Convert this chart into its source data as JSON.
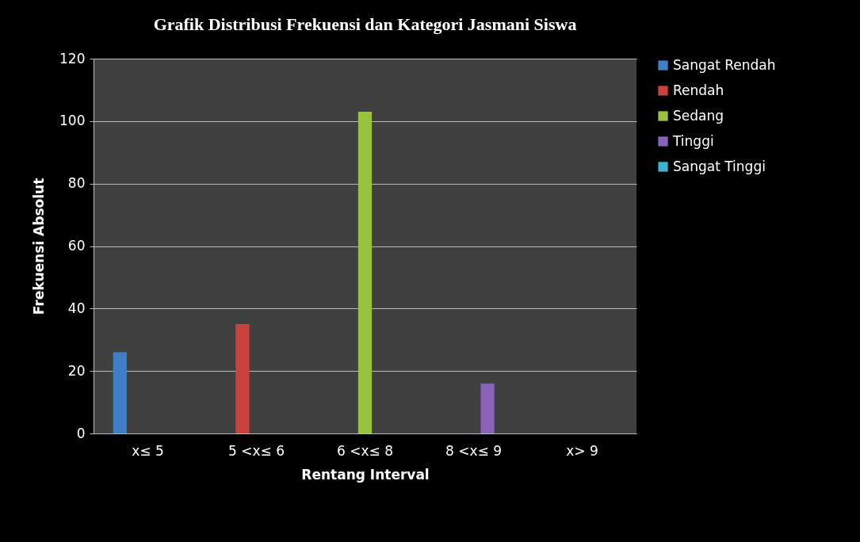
{
  "chart_data": {
    "type": "bar",
    "title": "Grafik Distribusi Frekuensi dan Kategori Jasmani Siswa",
    "xlabel": "Rentang Interval",
    "ylabel": "Frekuensi Absolut",
    "categories": [
      "x≤ 5",
      "5 <x≤ 6",
      "6 <x≤ 8",
      "8 <x≤ 9",
      "x> 9"
    ],
    "series": [
      {
        "name": "Sangat Rendah",
        "color": "#3f7fc8",
        "values": [
          26,
          null,
          null,
          null,
          null
        ]
      },
      {
        "name": "Rendah",
        "color": "#c8423e",
        "values": [
          null,
          35,
          null,
          null,
          null
        ]
      },
      {
        "name": "Sedang",
        "color": "#9bc23f",
        "values": [
          null,
          null,
          103,
          null,
          null
        ]
      },
      {
        "name": "Tinggi",
        "color": "#8a63b8",
        "values": [
          null,
          null,
          null,
          16,
          null
        ]
      },
      {
        "name": "Sangat Tinggi",
        "color": "#3cb4cc",
        "values": [
          null,
          null,
          null,
          null,
          0
        ]
      }
    ],
    "ylim": [
      0,
      120
    ],
    "yticks": [
      0,
      20,
      40,
      60,
      80,
      100,
      120
    ],
    "grid": "y",
    "legend": "right"
  }
}
